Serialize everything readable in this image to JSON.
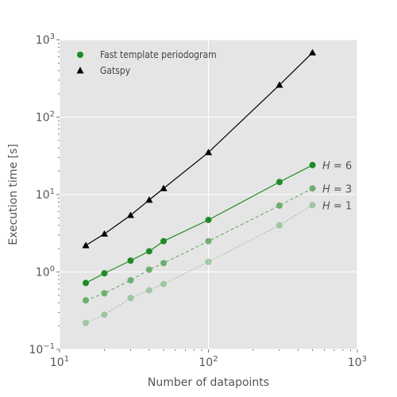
{
  "chart_data": {
    "type": "line",
    "x_scale": "log",
    "y_scale": "log",
    "xlabel": "Number of datapoints",
    "ylabel": "Execution time [s]",
    "xlim": [
      10,
      1000
    ],
    "ylim": [
      0.1,
      1000
    ],
    "x_ticks": [
      {
        "value": 10,
        "label": "10^1",
        "base": "10",
        "exp": "1"
      },
      {
        "value": 100,
        "label": "10^2",
        "base": "10",
        "exp": "2"
      },
      {
        "value": 1000,
        "label": "10^3",
        "base": "10",
        "exp": "3"
      }
    ],
    "y_ticks": [
      {
        "value": 0.1,
        "label": "10^-1",
        "base": "10",
        "exp": "−1"
      },
      {
        "value": 1,
        "label": "10^0",
        "base": "10",
        "exp": "0"
      },
      {
        "value": 10,
        "label": "10^1",
        "base": "10",
        "exp": "1"
      },
      {
        "value": 100,
        "label": "10^2",
        "base": "10",
        "exp": "2"
      },
      {
        "value": 1000,
        "label": "10^3",
        "base": "10",
        "exp": "3"
      }
    ],
    "grid": true,
    "legend_position": "top-left",
    "legend": [
      {
        "label": "Fast template periodogram",
        "marker": "circle",
        "color": "#1f8b24"
      },
      {
        "label": "Gatspy",
        "marker": "triangle",
        "color": "#000000"
      }
    ],
    "series": [
      {
        "name": "Gatspy",
        "marker": "triangle",
        "color": "#000000",
        "linestyle": "solid",
        "opacity": 1.0,
        "x": [
          15,
          20,
          30,
          40,
          50,
          100,
          300,
          500
        ],
        "y": [
          2.2,
          3.1,
          5.4,
          8.5,
          12.0,
          35.0,
          260.0,
          680.0
        ]
      },
      {
        "name": "H = 6",
        "label_var": "H",
        "label_val": "6",
        "marker": "circle",
        "color": "#1f8b24",
        "linestyle": "solid",
        "opacity": 1.0,
        "x": [
          15,
          20,
          30,
          40,
          50,
          100,
          300,
          500
        ],
        "y": [
          0.72,
          0.96,
          1.4,
          1.85,
          2.5,
          4.7,
          14.5,
          24.0
        ]
      },
      {
        "name": "H = 3",
        "label_var": "H",
        "label_val": "3",
        "marker": "circle",
        "color": "#1f8b24",
        "linestyle": "dashed",
        "opacity": 0.6,
        "x": [
          15,
          20,
          30,
          40,
          50,
          100,
          300,
          500
        ],
        "y": [
          0.43,
          0.53,
          0.78,
          1.07,
          1.3,
          2.5,
          7.2,
          12.0
        ]
      },
      {
        "name": "H = 1",
        "label_var": "H",
        "label_val": "1",
        "marker": "circle",
        "color": "#1f8b24",
        "linestyle": "dotted",
        "opacity": 0.35,
        "x": [
          15,
          20,
          30,
          40,
          50,
          100,
          300,
          500
        ],
        "y": [
          0.22,
          0.28,
          0.46,
          0.58,
          0.7,
          1.35,
          4.0,
          7.3
        ]
      }
    ],
    "colors": {
      "plot_background": "#e5e5e5",
      "grid": "#ffffff",
      "tick_text": "#555555"
    }
  }
}
